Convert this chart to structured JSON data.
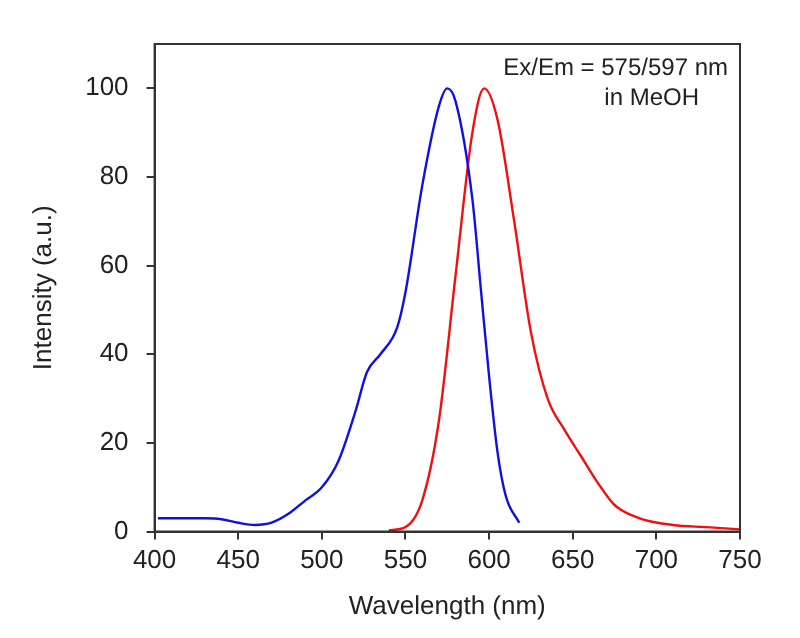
{
  "chart_data": {
    "type": "line",
    "xlabel": "Wavelength (nm)",
    "ylabel": "Intensity (a.u.)",
    "annotations": [
      "Ex/Em = 575/597 nm",
      "in MeOH"
    ],
    "xlim": [
      400,
      750
    ],
    "xticks": [
      400,
      450,
      500,
      550,
      600,
      650,
      700,
      750
    ],
    "ylim": [
      0,
      110
    ],
    "yticks": [
      0,
      20,
      40,
      60,
      80,
      100
    ],
    "series": [
      {
        "color": "#1010e0",
        "x": [
          402,
          410,
          420,
          430,
          440,
          450,
          460,
          470,
          480,
          490,
          500,
          510,
          520,
          527,
          535,
          545,
          550,
          560,
          570,
          575,
          580,
          590,
          595,
          600,
          605,
          610,
          618
        ],
        "values": [
          3,
          3,
          3,
          3,
          2.8,
          2,
          1.5,
          2,
          4,
          7,
          10,
          16,
          27,
          36,
          40,
          46,
          54,
          78,
          96,
          100,
          97,
          75,
          55,
          35,
          18,
          8,
          2
        ]
      },
      {
        "color": "#f01010",
        "x": [
          540,
          550,
          560,
          570,
          580,
          590,
          597,
          605,
          615,
          625,
          635,
          645,
          655,
          665,
          675,
          690,
          710,
          730,
          750
        ],
        "values": [
          0.3,
          1,
          7,
          25,
          58,
          90,
          100,
          93,
          70,
          45,
          30,
          23,
          17,
          11,
          6,
          3,
          1.5,
          1,
          0.5
        ]
      }
    ]
  }
}
